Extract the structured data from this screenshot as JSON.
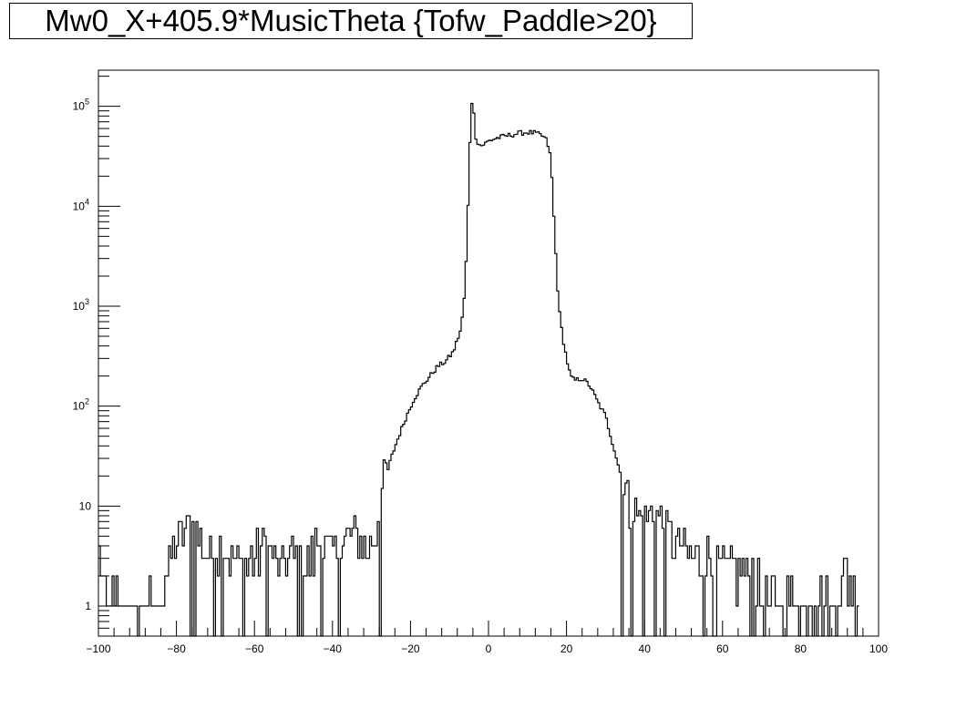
{
  "chart_data": {
    "type": "line",
    "title": "Mw0_X+405.9*MusicTheta {Tofw_Paddle>20}",
    "xlabel": "",
    "ylabel": "",
    "xlim": [
      -100,
      100
    ],
    "ylim": [
      0.5,
      230000
    ],
    "yscale": "log",
    "grid": false,
    "x_ticks": [
      -100,
      -80,
      -60,
      -40,
      -20,
      0,
      20,
      40,
      60,
      80,
      100
    ],
    "x_tick_labels": [
      "−100",
      "−80",
      "−60",
      "−40",
      "−20",
      "0",
      "20",
      "40",
      "60",
      "80",
      "100"
    ],
    "y_ticks": [
      1,
      10,
      100,
      1000,
      10000,
      100000
    ],
    "y_tick_labels": [
      {
        "base": "1",
        "exp": ""
      },
      {
        "base": "10",
        "exp": ""
      },
      {
        "base": "10",
        "exp": "2"
      },
      {
        "base": "10",
        "exp": "3"
      },
      {
        "base": "10",
        "exp": "4"
      },
      {
        "base": "10",
        "exp": "5"
      }
    ],
    "bin_width": 0.5,
    "series": [
      {
        "x": [
          -100,
          -99,
          -98,
          -95,
          -92,
          -88,
          -85,
          -80,
          -78,
          -76,
          -72,
          -68,
          -66,
          -63,
          -60,
          -57,
          -54,
          -50,
          -47,
          -44,
          -40,
          -37,
          -34,
          -31,
          -29,
          -27,
          -25,
          -23,
          -21,
          -19,
          -17,
          -15,
          -13,
          -11,
          -9,
          -7,
          -6,
          -5.5,
          -5,
          -4.5,
          -4,
          -3.5,
          -3,
          -2,
          -1,
          0,
          2,
          4,
          6,
          8,
          10,
          12,
          14,
          15,
          16,
          17,
          18,
          19,
          20,
          21,
          22,
          24,
          26,
          28,
          30,
          32,
          34,
          36,
          38,
          40,
          42,
          44,
          46,
          48,
          52,
          56,
          60,
          64,
          68,
          72,
          76,
          80,
          84,
          88,
          92,
          95
        ],
        "y": [
          4,
          2,
          1,
          1,
          0.8,
          1,
          0.8,
          4,
          5,
          6,
          3,
          4,
          3,
          2,
          3,
          4,
          2,
          3,
          2,
          4,
          3,
          4,
          5,
          3,
          5,
          15,
          30,
          50,
          80,
          120,
          160,
          200,
          250,
          280,
          350,
          600,
          1500,
          5000,
          20000,
          100000,
          125000,
          55000,
          45000,
          40000,
          42000,
          45000,
          48000,
          50000,
          52000,
          54000,
          55000,
          54000,
          50000,
          45000,
          30000,
          5000,
          1000,
          500,
          300,
          200,
          180,
          190,
          160,
          110,
          80,
          40,
          20,
          10,
          8,
          6,
          8,
          7,
          5,
          4,
          3,
          3,
          2,
          2,
          2,
          1,
          1,
          1,
          1,
          1,
          2,
          1
        ]
      }
    ]
  }
}
